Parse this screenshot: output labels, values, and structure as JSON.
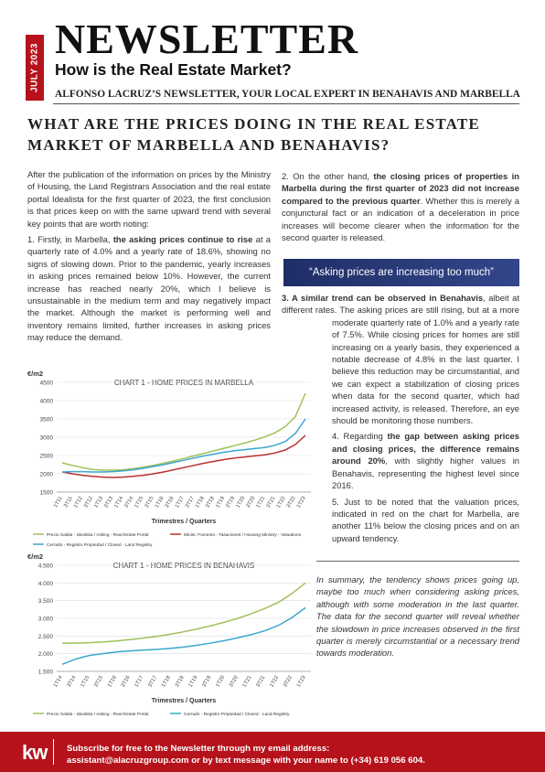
{
  "header": {
    "date": "JULY 2023",
    "title": "NEWSLETTER",
    "subtitle": "How is the Real Estate Market?",
    "byline": "ALFONSO LACRUZ’S NEWSLETTER, YOUR LOCAL EXPERT IN BENAHAVIS AND MARBELLA"
  },
  "headline": "WHAT ARE THE PRICES DOING IN THE REAL ESTATE MARKET OF MARBELLA AND BENAHAVIS?",
  "left_column": [
    [
      "After the publication of the information on prices by the Ministry of Housing, the Land Registrars Association and the real estate portal Idealista for the first quarter of 2023, the first conclusion is that prices keep on with the same upward trend with several key points that are worth noting:"
    ],
    [
      "1. Firstly, in Marbella, ",
      {
        "bold": "the asking prices continue to rise"
      },
      " at a quarterly rate of 4.0% and a yearly rate of 18.6%, showing no signs of slowing down. Prior to the pandemic, yearly increases in asking prices remained below 10%. However, the current increase has reached nearly 20%, which I believe is unsustainable in the medium term and may negatively impact the market. Although the market is performing well and inventory remains limited, further increases in asking prices may reduce the demand."
    ]
  ],
  "right_column_top": [
    [
      "2. On the other hand, ",
      {
        "bold": "the closing prices of properties in Marbella during the first quarter of 2023 did not increase compared to the previous quarter"
      },
      ". Whether this is merely a conjunctural fact or an indication of a deceleration in price increases will become clearer when the information for the second quarter is released."
    ]
  ],
  "quote": "“Asking prices are increasing too much”",
  "right_column_bottom": [
    [
      {
        "bold": "3. A similar trend can be observed in Benahavis"
      },
      ", albeit at different rates. The asking prices are still rising, but at a more moderate quarterly rate of 1.0% and a yearly rate of 7.5%. While closing prices for homes are still increasing on a yearly basis, they experienced a notable decrease of 4.8% in the last quarter. I believe this reduction may be circumstantial, and we can expect a stabilization of closing prices when data for the second quarter, which had increased activity, is released. Therefore, an eye should be monitoring those numbers."
    ],
    [
      "4. Regarding ",
      {
        "bold": "the gap between asking prices and closing prices, the difference remains around 20%"
      },
      ", with slightly higher values in Benahavis, representing the highest level since 2016."
    ],
    [
      "5. Just to be noted that the valuation prices, indicated in red on the chart for Marbella, are another 11% below the closing prices and on an upward tendency."
    ]
  ],
  "summary": "In summary, the tendency shows prices going up, maybe too much when considering asking prices, although with some moderation in the last quarter. The data for the second quarter will reveal whether the slowdown in price increases observed in the first quarter is merely circumstantial or a necessary trend towards moderation.",
  "footer": {
    "logo": "kw",
    "line1": "Subscribe for free to the Newsletter through my email address:",
    "line2": "assistant@alacruzgroup.com or by text message with your name to (+34) 619 056 604."
  },
  "chart_data": [
    {
      "type": "line",
      "title": "CHART 1 - HOME PRICES IN MARBELLA",
      "y_label": "€/m2",
      "x_label": "Trimestres / Quarters",
      "categories": [
        "1T11",
        "3T11",
        "1T12",
        "3T12",
        "1T13",
        "3T13",
        "1T14",
        "3T14",
        "1T15",
        "3T15",
        "1T16",
        "3T16",
        "1T17",
        "3T17",
        "1T18",
        "3T18",
        "1T19",
        "3T19",
        "1T20",
        "3T20",
        "1T21",
        "3T21",
        "1T22",
        "3T22",
        "1T23"
      ],
      "ylim": [
        1500,
        4500
      ],
      "yticks": [
        1500,
        2000,
        2500,
        3000,
        3500,
        4000,
        4500
      ],
      "grid": true,
      "series": [
        {
          "name": "Precio Salida - Idealista / Asking - Real Estate Portal",
          "color": "#9fc05a",
          "values": [
            2300,
            2230,
            2170,
            2120,
            2100,
            2100,
            2110,
            2140,
            2180,
            2230,
            2290,
            2350,
            2420,
            2490,
            2560,
            2630,
            2700,
            2770,
            2840,
            2920,
            3010,
            3120,
            3290,
            3560,
            4200
          ]
        },
        {
          "name": "Minist. Fomento - Tasaciones / Housing Ministry - Valuations",
          "color": "#b8312f",
          "values": [
            2050,
            2000,
            1960,
            1930,
            1910,
            1900,
            1910,
            1930,
            1960,
            2000,
            2050,
            2110,
            2170,
            2230,
            2290,
            2340,
            2390,
            2430,
            2460,
            2490,
            2520,
            2570,
            2650,
            2800,
            3050
          ]
        },
        {
          "name": "Cerrado - Registro Propiedad / Closed - Land Registry",
          "color": "#3aa6d0",
          "values": [
            2050,
            2060,
            2060,
            2050,
            2050,
            2060,
            2080,
            2110,
            2150,
            2200,
            2250,
            2310,
            2370,
            2430,
            2490,
            2540,
            2590,
            2630,
            2660,
            2690,
            2720,
            2780,
            2880,
            3100,
            3500
          ]
        }
      ]
    },
    {
      "type": "line",
      "title": "CHART 1 - HOME PRICES IN BENAHAVIS",
      "y_label": "€/m2",
      "x_label": "Trimestres / Quarters",
      "categories": [
        "1T14",
        "3T14",
        "1T15",
        "3T15",
        "1T16",
        "3T16",
        "1T17",
        "3T17",
        "1T18",
        "3T18",
        "1T19",
        "3T19",
        "1T20",
        "3T20",
        "1T21",
        "3T21",
        "1T22",
        "3T22",
        "1T23"
      ],
      "ylim": [
        1500,
        4500
      ],
      "yticks": [
        {
          "value": 1500,
          "label": "1.500"
        },
        {
          "value": 2000,
          "label": "2.000"
        },
        {
          "value": 2500,
          "label": "2.500"
        },
        {
          "value": 3000,
          "label": "3.000"
        },
        {
          "value": 3500,
          "label": "3.500"
        },
        {
          "value": 4000,
          "label": "4.000"
        },
        {
          "value": 4500,
          "label": "4.500"
        }
      ],
      "grid": true,
      "series": [
        {
          "name": "Precio Salida - Idealista / Asking - Real Estate Portal",
          "color": "#9fc05a",
          "values": [
            2300,
            2300,
            2310,
            2330,
            2360,
            2400,
            2440,
            2490,
            2550,
            2620,
            2700,
            2790,
            2890,
            3000,
            3130,
            3280,
            3450,
            3700,
            4000
          ]
        },
        {
          "name": "Cerrado - Registro Propiedad / Closed - Land Registry",
          "color": "#3aa6d0",
          "values": [
            1700,
            1850,
            1950,
            2000,
            2050,
            2080,
            2100,
            2120,
            2150,
            2190,
            2240,
            2300,
            2370,
            2450,
            2540,
            2650,
            2800,
            3020,
            3300
          ]
        }
      ]
    }
  ]
}
